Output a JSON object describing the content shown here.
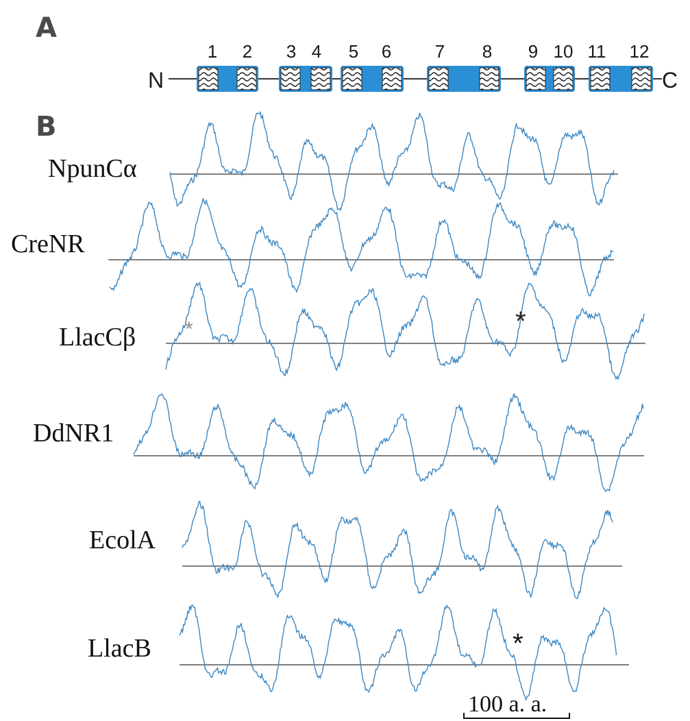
{
  "panel_a": {
    "label": "A",
    "n_terminus": "N",
    "c_terminus": "C",
    "helices": [
      "1",
      "2",
      "3",
      "4",
      "5",
      "6",
      "7",
      "8",
      "9",
      "10",
      "11",
      "12"
    ]
  },
  "panel_b": {
    "label": "B",
    "profiles": [
      {
        "name": "NpunCα",
        "asterisks": []
      },
      {
        "name": "CreNR",
        "asterisks": []
      },
      {
        "name": "LlacCβ",
        "asterisks": [
          "*",
          "*"
        ]
      },
      {
        "name": "DdNR1",
        "asterisks": []
      },
      {
        "name": "EcolA",
        "asterisks": []
      },
      {
        "name": "LlacB",
        "asterisks": [
          "*"
        ]
      }
    ],
    "scale_bar_label": "100 a. a."
  },
  "colors": {
    "helix_fill": "#2b8fd6",
    "trace": "#3a86c2",
    "baseline": "#555555",
    "text": "#111111"
  }
}
